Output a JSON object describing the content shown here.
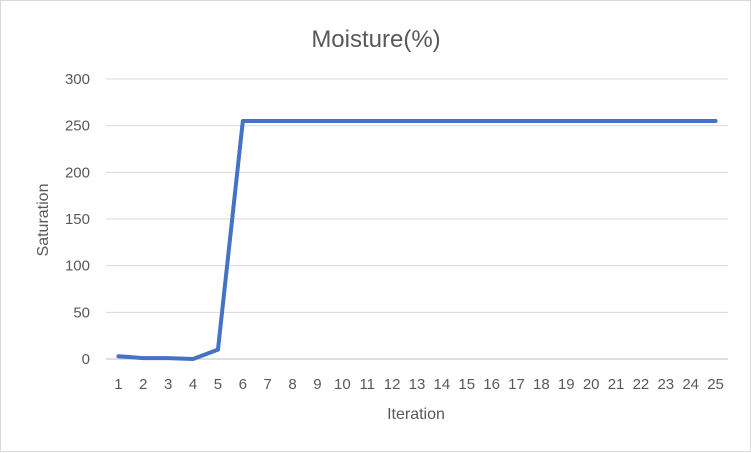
{
  "chart_data": {
    "type": "line",
    "title": "Moisture(%)",
    "xlabel": "Iteration",
    "ylabel": "Saturation",
    "categories": [
      "1",
      "2",
      "3",
      "4",
      "5",
      "6",
      "7",
      "8",
      "9",
      "10",
      "11",
      "12",
      "13",
      "14",
      "15",
      "16",
      "17",
      "18",
      "19",
      "20",
      "21",
      "22",
      "23",
      "24",
      "25"
    ],
    "series": [
      {
        "values": [
          3,
          1,
          1,
          0,
          10,
          255,
          255,
          255,
          255,
          255,
          255,
          255,
          255,
          255,
          255,
          255,
          255,
          255,
          255,
          255,
          255,
          255,
          255,
          255,
          255
        ],
        "color": "#4472c4"
      }
    ],
    "ylim": [
      0,
      300
    ],
    "yticks": [
      "0",
      "50",
      "100",
      "150",
      "200",
      "250",
      "300"
    ],
    "grid": true,
    "legend": "none"
  }
}
